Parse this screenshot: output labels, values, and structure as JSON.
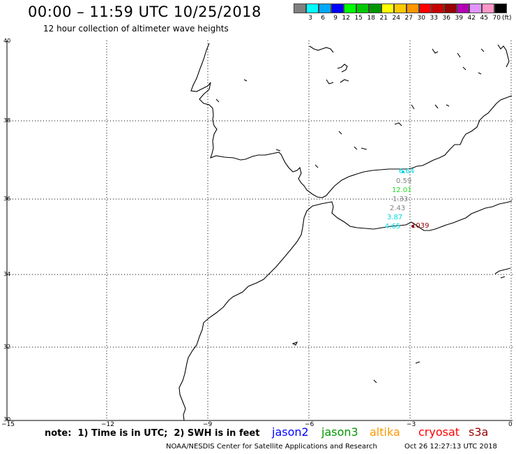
{
  "header": {
    "title": "00:00 – 11:59 UTC 10/25/2018",
    "subtitle": "12 hour collection of altimeter wave heights"
  },
  "legend": {
    "colors": [
      "#808080",
      "#00ffff",
      "#00a8ff",
      "#0000ff",
      "#00ff00",
      "#00c800",
      "#009600",
      "#ffff00",
      "#ffc800",
      "#ff9600",
      "#ff0000",
      "#c80000",
      "#960000",
      "#b400b4",
      "#e196ff",
      "#ff96c8",
      "#000000"
    ],
    "labels": [
      "3",
      "6",
      "9",
      "12",
      "15",
      "18",
      "21",
      "24",
      "27",
      "30",
      "33",
      "36",
      "39",
      "42",
      "45",
      "70"
    ],
    "unit": "(ft)"
  },
  "map": {
    "y_ticks": [
      "40",
      "38",
      "36",
      "34",
      "32",
      "30"
    ],
    "x_ticks": [
      "−15",
      "−12",
      "−9",
      "−6",
      "−3",
      "0"
    ],
    "observations": [
      {
        "text": "6.64",
        "color": "#00d8e0"
      },
      {
        "text": "0.59",
        "color": "#808080"
      },
      {
        "text": "12.01",
        "color": "#22dd22"
      },
      {
        "text": "1.33",
        "color": "#808080"
      },
      {
        "text": "2.43",
        "color": "#808080"
      },
      {
        "text": "3.87",
        "color": "#00d8e0"
      },
      {
        "text": "4.65",
        "color": "#00d8e0"
      },
      {
        "text": "1039",
        "color": "#960000"
      }
    ]
  },
  "footer": {
    "note": "note:  1) Time is in UTC;  2) SWH is in feet",
    "satellites": [
      {
        "name": "jason2",
        "color": "#0000ff"
      },
      {
        "name": "jason3",
        "color": "#009600"
      },
      {
        "name": "altika",
        "color": "#ff9600"
      },
      {
        "name": "cryosat",
        "color": "#ff0000"
      },
      {
        "name": "s3a",
        "color": "#960000"
      }
    ],
    "credit": "NOAA/NESDIS Center for Satellite Applications and Research",
    "timestamp": "Oct 26 12:27:13 UTC 2018"
  }
}
